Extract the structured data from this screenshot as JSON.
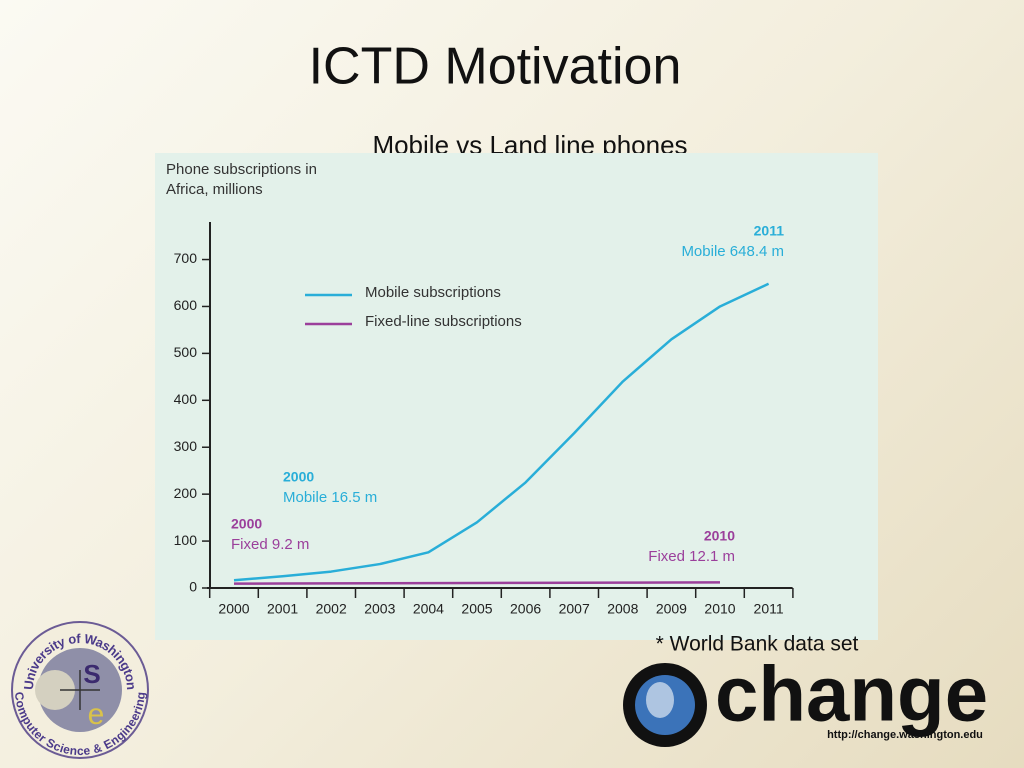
{
  "slide": {
    "title": "ICTD Motivation",
    "subtitle": "Mobile vs Land line phones",
    "footnote": "* World Bank data set",
    "uw_logo": {
      "top": "University of Washington",
      "bottom": "Computer Science & Engineering",
      "letter_s": "S",
      "letter_e": "e"
    },
    "change_logo": {
      "word": "change",
      "url": "http://change.washington.edu"
    }
  },
  "chart_data": {
    "type": "line",
    "title": "Phone subscriptions in Africa, millions",
    "categories": [
      "2000",
      "2001",
      "2002",
      "2003",
      "2004",
      "2005",
      "2006",
      "2007",
      "2008",
      "2009",
      "2010",
      "2011"
    ],
    "series": [
      {
        "name": "Mobile subscriptions",
        "color": "#29aed8",
        "values": [
          16.5,
          25,
          35,
          51,
          76,
          140,
          225,
          330,
          440,
          530,
          600,
          648.4
        ]
      },
      {
        "name": "Fixed-line subscriptions",
        "color": "#9b3f9b",
        "values": [
          9.2,
          9.5,
          9.8,
          10.1,
          10.4,
          10.7,
          11,
          11.2,
          11.5,
          11.8,
          12.1,
          null
        ]
      }
    ],
    "ylim": [
      0,
      780
    ],
    "yticks": [
      0,
      100,
      200,
      300,
      400,
      500,
      600,
      700
    ],
    "annotations": [
      {
        "year": "2011",
        "text": "Mobile 648.4 m"
      },
      {
        "year": "2000",
        "text": "Mobile 16.5 m"
      },
      {
        "year": "2000",
        "text": "Fixed 9.2 m"
      },
      {
        "year": "2010",
        "text": "Fixed 12.1 m"
      }
    ]
  }
}
